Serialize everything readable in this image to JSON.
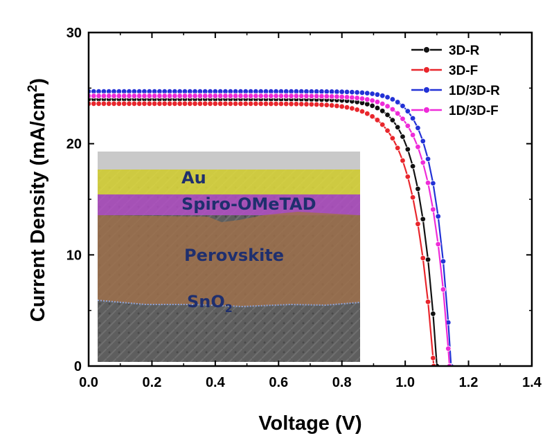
{
  "chart_data": {
    "type": "line",
    "xlabel": "Voltage (V)",
    "ylabel_main": "Current Density (mA/cm",
    "ylabel_sup": "2",
    "ylabel_close": ")",
    "xlim": [
      0,
      1.4
    ],
    "ylim": [
      0,
      30
    ],
    "x_ticks": [
      "0.0",
      "0.2",
      "0.4",
      "0.6",
      "0.8",
      "1.0",
      "1.2",
      "1.4"
    ],
    "y_ticks": [
      "0",
      "10",
      "20",
      "30"
    ],
    "legend_position": "top-right",
    "series": [
      {
        "name": "3D-R",
        "color": "#111111",
        "jsc": 24.0,
        "voc": 1.1,
        "knee": 20.0
      },
      {
        "name": "3D-F",
        "color": "#e8262c",
        "jsc": 23.6,
        "voc": 1.09,
        "knee": 17.0
      },
      {
        "name": "1D/3D-R",
        "color": "#2332d6",
        "jsc": 24.7,
        "voc": 1.145,
        "knee": 22.0
      },
      {
        "name": "1D/3D-F",
        "color": "#ee2bd8",
        "jsc": 24.3,
        "voc": 1.14,
        "knee": 19.0
      }
    ],
    "inset": {
      "icon": "sem-cross-section-image",
      "layers": [
        {
          "label": "Au",
          "color": "#e7e23a"
        },
        {
          "label": "Spiro-OMeTAD",
          "color": "#b54ec9"
        },
        {
          "label": "Perovskite",
          "color": "#a0704a"
        },
        {
          "label": "SnO",
          "sub": "2",
          "color": "#707070"
        }
      ]
    }
  }
}
